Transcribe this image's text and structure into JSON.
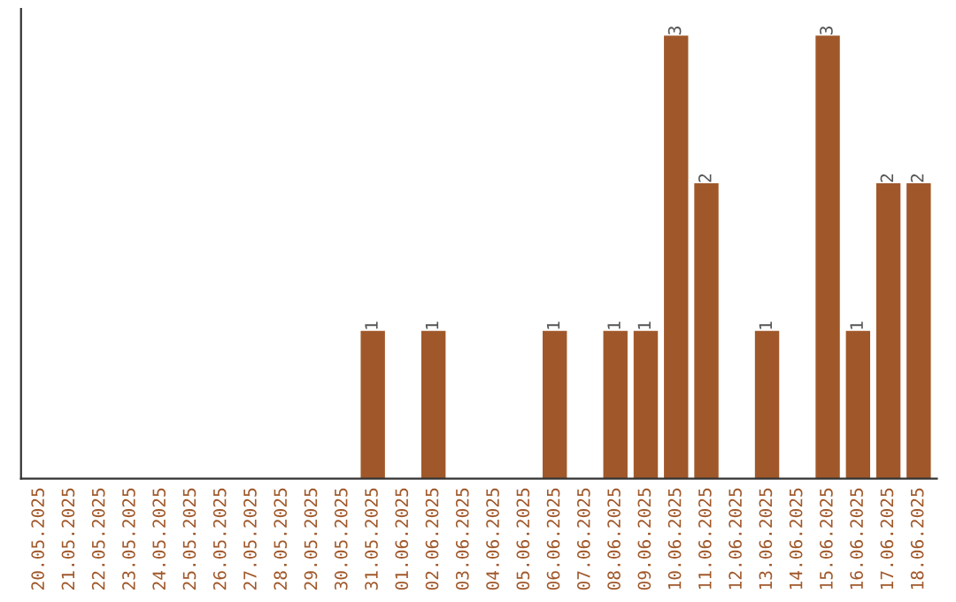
{
  "chart_data": {
    "type": "bar",
    "categories": [
      "20.05.2025",
      "21.05.2025",
      "22.05.2025",
      "23.05.2025",
      "24.05.2025",
      "25.05.2025",
      "26.05.2025",
      "27.05.2025",
      "28.05.2025",
      "29.05.2025",
      "30.05.2025",
      "31.05.2025",
      "01.06.2025",
      "02.06.2025",
      "03.06.2025",
      "04.06.2025",
      "05.06.2025",
      "06.06.2025",
      "07.06.2025",
      "08.06.2025",
      "09.06.2025",
      "10.06.2025",
      "11.06.2025",
      "12.06.2025",
      "13.06.2025",
      "14.06.2025",
      "15.06.2025",
      "16.06.2025",
      "17.06.2025",
      "18.06.2025"
    ],
    "values": [
      0,
      0,
      0,
      0,
      0,
      0,
      0,
      0,
      0,
      0,
      0,
      1,
      0,
      1,
      0,
      0,
      0,
      1,
      0,
      1,
      1,
      3,
      2,
      0,
      1,
      0,
      3,
      1,
      2,
      2
    ],
    "value_labels": [
      null,
      null,
      null,
      null,
      null,
      null,
      null,
      null,
      null,
      null,
      null,
      "1",
      null,
      "1",
      null,
      null,
      null,
      "1",
      null,
      "1",
      "1",
      "3",
      "2",
      null,
      "1",
      null,
      "3",
      "1",
      "2",
      "2"
    ],
    "color": "#a0582a",
    "tick_labels": "x",
    "grid": false
  }
}
